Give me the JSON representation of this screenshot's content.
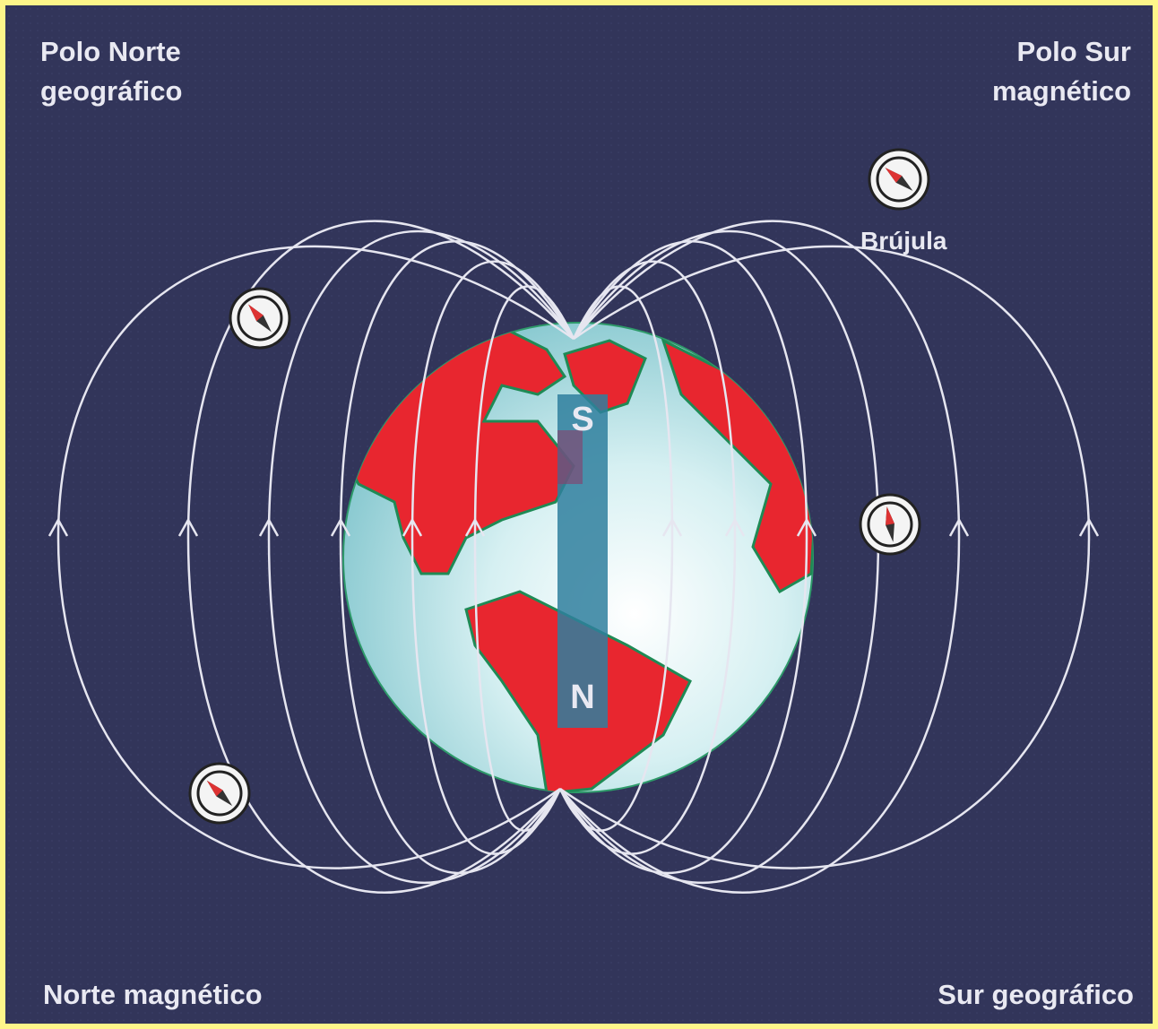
{
  "labels": {
    "top_left": [
      "Polo Norte",
      "geográfico"
    ],
    "top_right": [
      "Polo Sur",
      "magnético"
    ],
    "compass": "Brújula",
    "bottom_left": "Norte magnético",
    "bottom_right": "Sur geográfico"
  },
  "magnet": {
    "south": "S",
    "north": "N"
  }
}
